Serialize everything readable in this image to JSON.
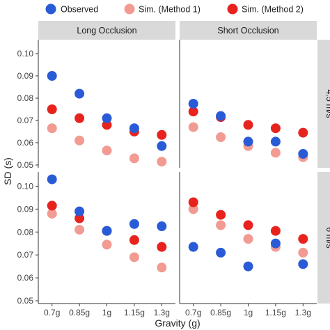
{
  "chart_data": {
    "type": "scatter",
    "xlabel": "Gravity (g)",
    "ylabel": "SD (s)",
    "categories": [
      "0.7g",
      "0.85g",
      "1g",
      "1.15g",
      "1.3g"
    ],
    "ylim": [
      0.05,
      0.105
    ],
    "yticks": [
      "0.05",
      "0.06",
      "0.07",
      "0.08",
      "0.09",
      "0.10"
    ],
    "legend_position": "top",
    "columns": [
      "Long Occlusion",
      "Short Occlusion"
    ],
    "rows": [
      "4.5 m/s",
      "6 m/s"
    ],
    "series": [
      {
        "name": "Observed",
        "color": "#2a5bd7"
      },
      {
        "name": "Sim. (Method 1)",
        "color": "#f29b93"
      },
      {
        "name": "Sim. (Method 2)",
        "color": "#e8231e"
      }
    ],
    "panels": [
      {
        "column": "Long Occlusion",
        "row": "4.5 m/s",
        "values": {
          "Observed": [
            0.09,
            0.082,
            0.071,
            0.0665,
            0.0585
          ],
          "Sim. (Method 1)": [
            0.0665,
            0.061,
            0.0565,
            0.053,
            0.0515
          ],
          "Sim. (Method 2)": [
            0.075,
            0.071,
            0.068,
            0.065,
            0.0635
          ]
        }
      },
      {
        "column": "Short Occlusion",
        "row": "4.5 m/s",
        "values": {
          "Observed": [
            0.0775,
            0.072,
            0.0605,
            0.0605,
            0.055
          ],
          "Sim. (Method 1)": [
            0.067,
            0.0625,
            0.0585,
            0.0555,
            0.0535
          ],
          "Sim. (Method 2)": [
            0.074,
            0.0715,
            0.068,
            0.0665,
            0.0645
          ]
        }
      },
      {
        "column": "Long Occlusion",
        "row": "6 m/s",
        "values": {
          "Observed": [
            0.103,
            0.089,
            0.0805,
            0.0835,
            0.0825
          ],
          "Sim. (Method 1)": [
            0.088,
            0.081,
            0.0745,
            0.069,
            0.0645
          ],
          "Sim. (Method 2)": [
            0.0915,
            0.086,
            0.0805,
            0.0765,
            0.0735
          ]
        }
      },
      {
        "column": "Short Occlusion",
        "row": "6 m/s",
        "values": {
          "Observed": [
            0.0735,
            0.071,
            0.065,
            0.075,
            0.066
          ],
          "Sim. (Method 1)": [
            0.09,
            0.083,
            0.077,
            0.0735,
            0.071
          ],
          "Sim. (Method 2)": [
            0.093,
            0.0875,
            0.083,
            0.0805,
            0.077
          ]
        }
      }
    ]
  }
}
